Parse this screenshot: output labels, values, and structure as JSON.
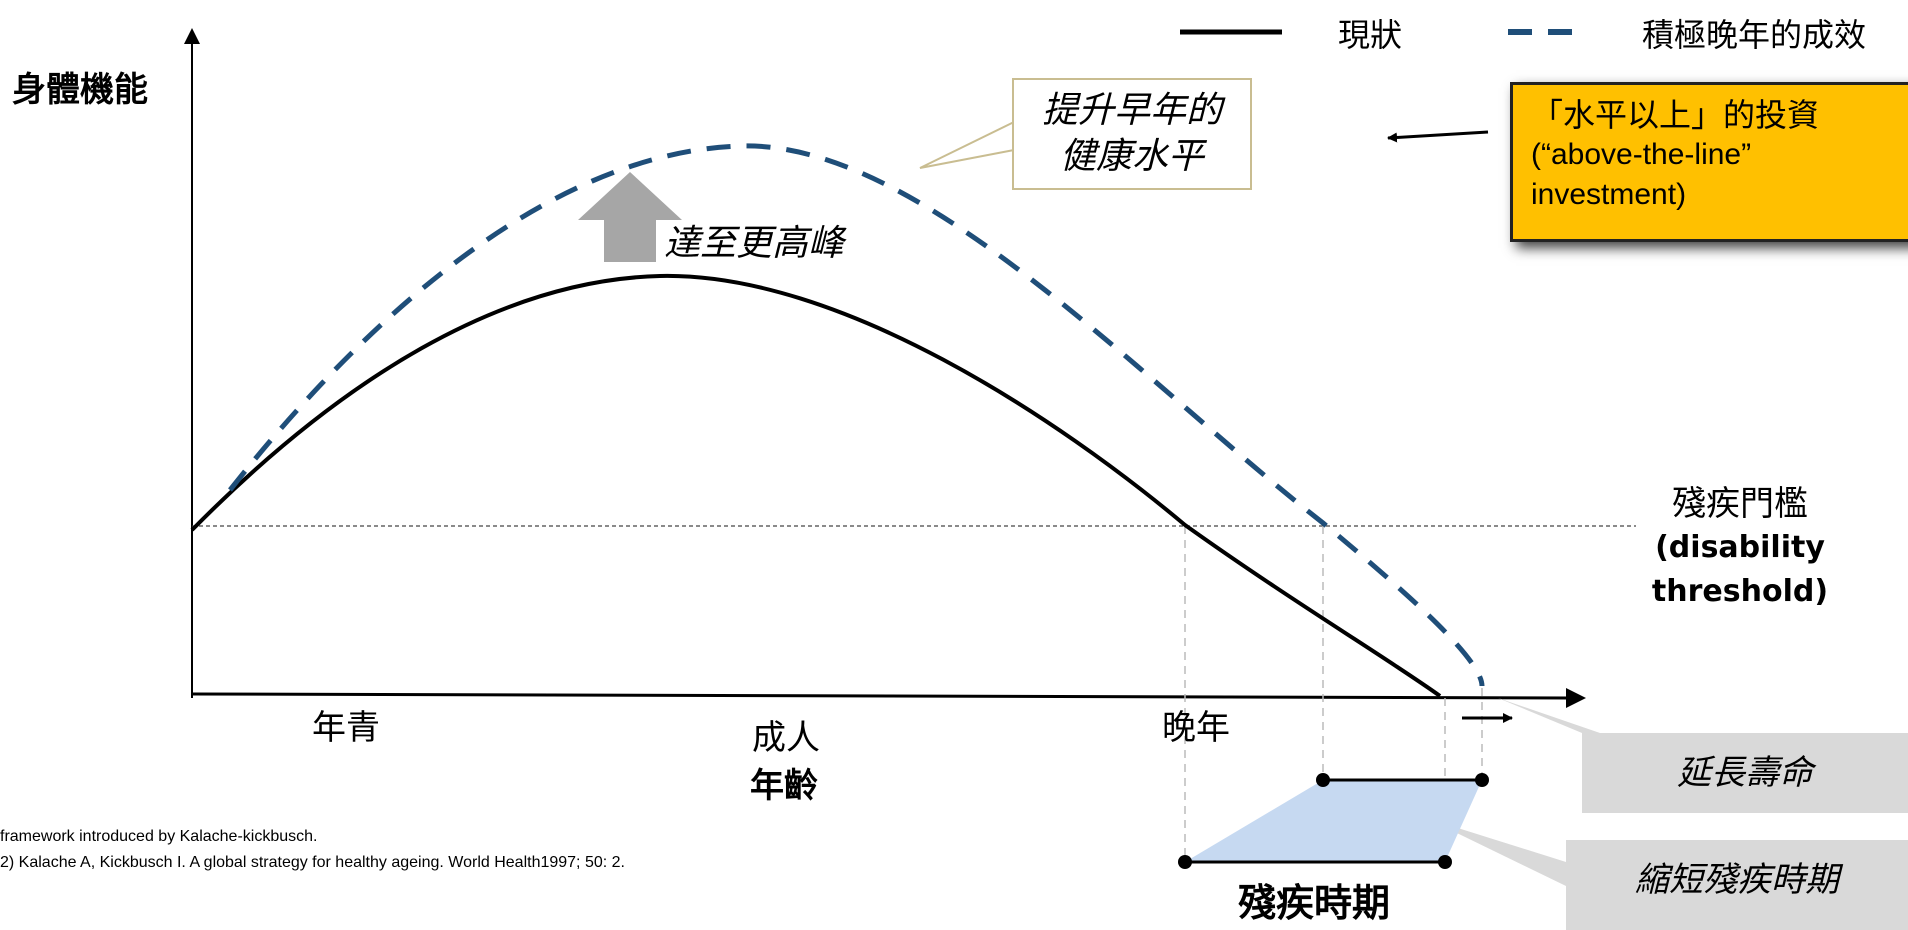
{
  "colors": {
    "current_line": "#000000",
    "positive_line": "#1f4e79",
    "arrow_grey": "#a6a6a6",
    "above_box_fill": "#ffc000",
    "compression_fill": "#c6d9f1",
    "grey_box": "#d9d9d9",
    "callout_border": "#c9bd91"
  },
  "legend": {
    "current": {
      "label": "現狀",
      "style": "solid-black"
    },
    "positive": {
      "label": "積極晚年的成效",
      "style": "dashed-blue"
    }
  },
  "axes": {
    "y_title": "身體機能",
    "x_title": "年齡",
    "x_categories": [
      "年青",
      "成人",
      "晚年"
    ]
  },
  "callout": {
    "lines": [
      "提升早年的",
      "健康水平"
    ]
  },
  "peak_label": "達至更高峰",
  "above_line_box": {
    "line1": "「水平以上」的投資",
    "line2": "(“above-the-line”",
    "line3": "investment)"
  },
  "threshold": {
    "zh": "殘疾門檻",
    "en1": "(disability",
    "en2": "threshold)"
  },
  "extend_life_label": "延長壽命",
  "shorten_disability_label": "縮短殘疾時期",
  "disability_period_label": "殘疾時期",
  "footnotes": [
    "framework introduced by Kalache-kickbusch.",
    "2) Kalache A, Kickbusch I. A global strategy for healthy ageing. World Health1997; 50: 2."
  ]
}
